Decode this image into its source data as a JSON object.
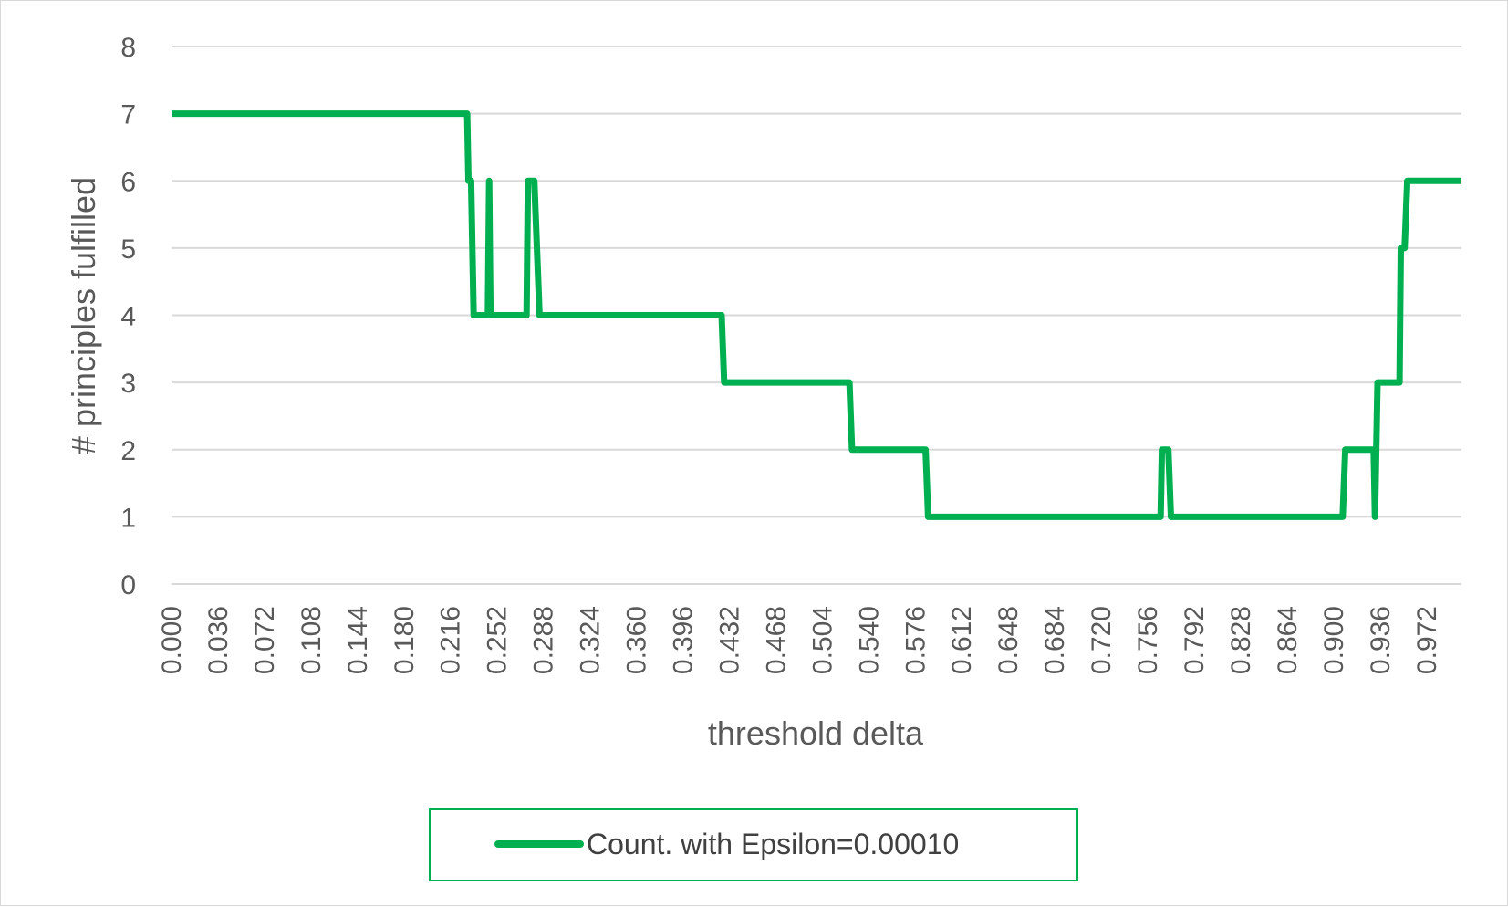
{
  "chart_data": {
    "type": "line",
    "title": "",
    "xlabel": "threshold delta",
    "ylabel": "# principles fulfilled",
    "ylim": [
      0,
      8
    ],
    "yticks": [
      "0",
      "1",
      "2",
      "3",
      "4",
      "5",
      "6",
      "7",
      "8"
    ],
    "xlim": [
      0,
      0.999
    ],
    "xticks": [
      "0.000",
      "0.036",
      "0.072",
      "0.108",
      "0.144",
      "0.180",
      "0.216",
      "0.252",
      "0.288",
      "0.324",
      "0.360",
      "0.396",
      "0.432",
      "0.468",
      "0.504",
      "0.540",
      "0.576",
      "0.612",
      "0.648",
      "0.684",
      "0.720",
      "0.756",
      "0.792",
      "0.828",
      "0.864",
      "0.900",
      "0.936",
      "0.972"
    ],
    "grid": true,
    "legend_position": "bottom",
    "series": [
      {
        "name": "Count. with Epsilon=0.00010",
        "color": "#00b050",
        "x": [
          0.0,
          0.229,
          0.23,
          0.232,
          0.234,
          0.245,
          0.246,
          0.247,
          0.275,
          0.276,
          0.281,
          0.285,
          0.426,
          0.428,
          0.525,
          0.527,
          0.584,
          0.586,
          0.766,
          0.767,
          0.772,
          0.774,
          0.907,
          0.909,
          0.931,
          0.932,
          0.934,
          0.951,
          0.952,
          0.955,
          0.957,
          0.999
        ],
        "values": [
          7,
          7,
          6,
          6,
          4,
          4,
          6,
          4,
          4,
          6,
          6,
          4,
          4,
          3,
          3,
          2,
          2,
          1,
          1,
          2,
          2,
          1,
          1,
          2,
          2,
          1,
          3,
          3,
          5,
          5,
          6,
          6
        ]
      }
    ]
  }
}
